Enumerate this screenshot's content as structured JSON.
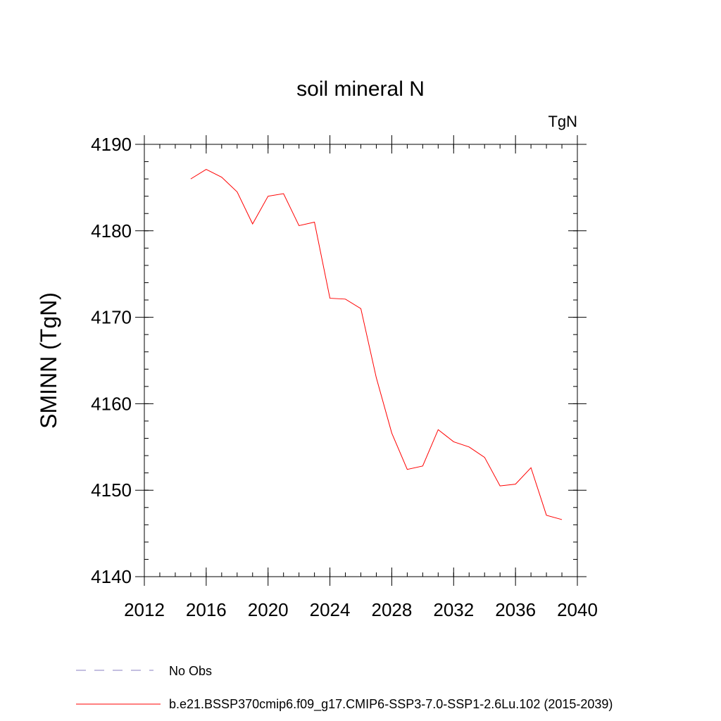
{
  "chart_data": {
    "type": "line",
    "title": "soil mineral N",
    "units_label": "TgN",
    "ylabel": "SMINN  (TgN)",
    "xlabel": "",
    "xlim": [
      2012,
      2040
    ],
    "ylim": [
      4140,
      4190
    ],
    "x_ticks": [
      2012,
      2016,
      2020,
      2024,
      2028,
      2032,
      2036,
      2040
    ],
    "y_ticks": [
      4140,
      4150,
      4160,
      4170,
      4180,
      4190
    ],
    "x_minor_step": 1,
    "y_minor_step": 2,
    "grid": false,
    "legend_position": "bottom",
    "series": [
      {
        "name": "b.e21.BSSP370cmip6.f09_g17.CMIP6-SSP3-7.0-SSP1-2.6Lu.102 (2015-2039)",
        "color": "#ff0000",
        "style": "solid",
        "x": [
          2015,
          2016,
          2017,
          2018,
          2019,
          2020,
          2021,
          2022,
          2023,
          2024,
          2025,
          2026,
          2027,
          2028,
          2029,
          2030,
          2031,
          2032,
          2033,
          2034,
          2035,
          2036,
          2037,
          2038,
          2039
        ],
        "y": [
          4186.0,
          4187.1,
          4186.2,
          4184.5,
          4180.8,
          4184.0,
          4184.3,
          4180.6,
          4181.0,
          4172.2,
          4172.1,
          4171.0,
          4163.0,
          4156.6,
          4152.4,
          4152.8,
          4157.0,
          4155.6,
          4155.0,
          4153.8,
          4150.5,
          4150.7,
          4152.6,
          4147.1,
          4146.6
        ]
      },
      {
        "name": "No Obs",
        "color": "#8a7fc0",
        "style": "dashed",
        "x": [],
        "y": []
      }
    ]
  }
}
